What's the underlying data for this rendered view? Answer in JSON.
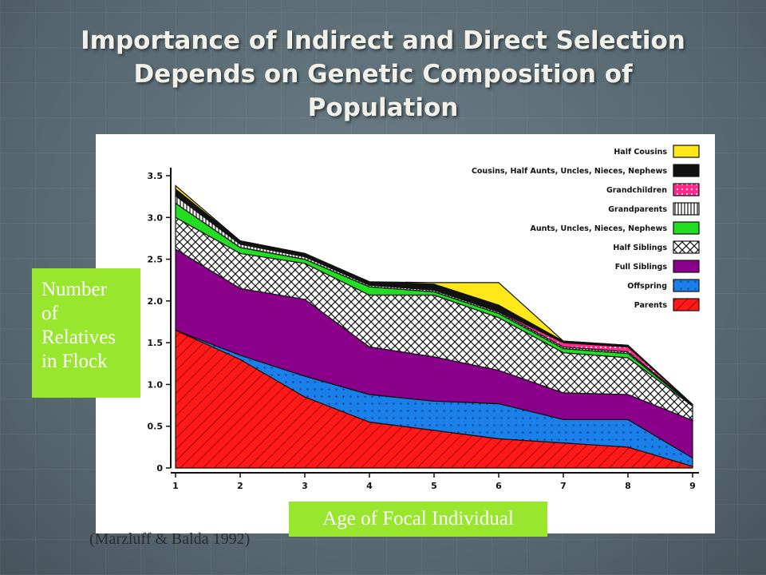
{
  "slide": {
    "title_lines": [
      "Importance of Indirect and Direct Selection",
      "Depends on Genetic Composition of",
      "Population"
    ],
    "ylabel_lines": [
      "Number",
      "of",
      "Relatives",
      "in Flock"
    ],
    "xlabel": "Age of Focal Individual",
    "citation": "(Marzluff & Balda 1992)"
  },
  "chart_data": {
    "type": "area",
    "stacked": true,
    "x": [
      1,
      2,
      3,
      4,
      5,
      6,
      7,
      8,
      9
    ],
    "xlim": [
      1,
      9
    ],
    "ylim": [
      0,
      3.5
    ],
    "yticks": [
      "0",
      "0.5",
      "1.0",
      "1.5",
      "2.0",
      "2.5",
      "3.0",
      "3.5"
    ],
    "xticks": [
      "1",
      "2",
      "3",
      "4",
      "5",
      "6",
      "7",
      "8",
      "9"
    ],
    "legend_position": "top-right",
    "series": [
      {
        "name": "Parents",
        "color": "#ff1a1a",
        "pattern": "hatch",
        "values": [
          1.65,
          1.3,
          0.85,
          0.55,
          0.45,
          0.35,
          0.3,
          0.25,
          0.02
        ]
      },
      {
        "name": "Offspring",
        "color": "#1a7fe8",
        "pattern": "dots",
        "values": [
          0.0,
          0.05,
          0.25,
          0.33,
          0.35,
          0.42,
          0.28,
          0.33,
          0.1
        ]
      },
      {
        "name": "Full Siblings",
        "color": "#8a008a",
        "pattern": "solid",
        "values": [
          0.97,
          0.8,
          0.92,
          0.57,
          0.53,
          0.4,
          0.32,
          0.3,
          0.45
        ]
      },
      {
        "name": "Half Siblings",
        "color": "#ffffff",
        "pattern": "crosshatch",
        "values": [
          0.38,
          0.42,
          0.43,
          0.62,
          0.74,
          0.63,
          0.48,
          0.44,
          0.17
        ]
      },
      {
        "name": "Aunts, Uncles, Nieces, Nephews",
        "color": "#22dd22",
        "pattern": "solid",
        "values": [
          0.17,
          0.07,
          0.05,
          0.1,
          0.04,
          0.05,
          0.05,
          0.05,
          0.01
        ]
      },
      {
        "name": "Grandparents",
        "color": "#ffffff",
        "pattern": "vertical",
        "values": [
          0.09,
          0.04,
          0.03,
          0.02,
          0.02,
          0.02,
          0.02,
          0.02,
          0.01
        ]
      },
      {
        "name": "Grandchildren",
        "color": "#ff2a8a",
        "pattern": "dots",
        "values": [
          0.0,
          0.0,
          0.0,
          0.0,
          0.0,
          0.01,
          0.05,
          0.06,
          0.0
        ]
      },
      {
        "name": "Cousins, Half Aunts, Uncles, Nieces, Nephews",
        "color": "#111111",
        "pattern": "solid",
        "values": [
          0.08,
          0.04,
          0.04,
          0.04,
          0.07,
          0.07,
          0.02,
          0.02,
          0.0
        ]
      },
      {
        "name": "Half Cousins",
        "color": "#ffe81a",
        "pattern": "solid",
        "values": [
          0.04,
          0.0,
          0.0,
          0.0,
          0.02,
          0.27,
          0.0,
          0.0,
          0.0
        ]
      }
    ]
  }
}
